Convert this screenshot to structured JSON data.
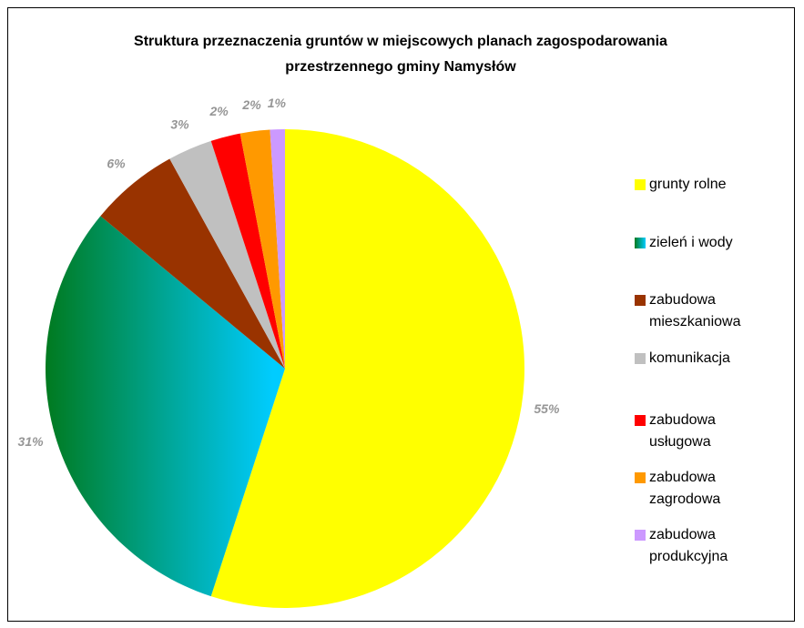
{
  "chart_data": {
    "type": "pie",
    "title": "Struktura przeznaczenia gruntów w miejscowych planach zagospodarowania przestrzennego gminy Namysłów",
    "categories": [
      "grunty rolne",
      "zieleń i wody",
      "zabudowa mieszkaniowa",
      "komunikacja",
      "zabudowa usługowa",
      "zabudowa zagrodowa",
      "zabudowa produkcyjna"
    ],
    "values": [
      55,
      31,
      6,
      3,
      2,
      2,
      1
    ],
    "value_labels": [
      "55%",
      "31%",
      "6%",
      "3%",
      "2%",
      "2%",
      "1%"
    ],
    "colors": [
      "#ffff00",
      "#00ccff",
      "#993300",
      "#c0c0c0",
      "#ff0000",
      "#ff9900",
      "#cc99ff"
    ],
    "legend": "right"
  }
}
